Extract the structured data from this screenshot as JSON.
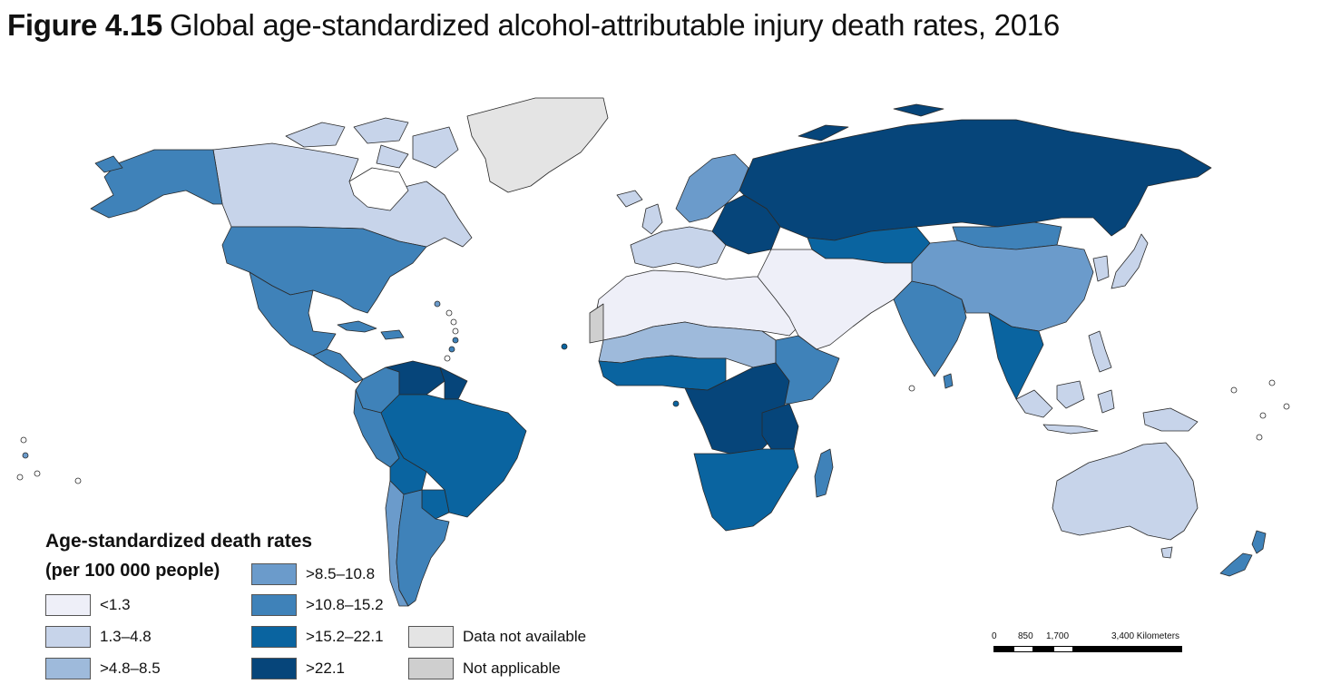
{
  "title": {
    "figure_number": "Figure 4.15",
    "text": "Global age-standardized alcohol-attributable injury death rates, 2016"
  },
  "legend": {
    "title_line1": "Age-standardized death rates",
    "title_line2": "(per 100 000 people)",
    "classes": [
      {
        "label": "<1.3",
        "color": "#eeeff8"
      },
      {
        "label": "1.3–4.8",
        "color": "#c7d4ea"
      },
      {
        "label": ">4.8–8.5",
        "color": "#9ebadb"
      },
      {
        "label": ">8.5–10.8",
        "color": "#6b9bcb"
      },
      {
        "label": ">10.8–15.2",
        "color": "#3f82b9"
      },
      {
        "label": ">15.2–22.1",
        "color": "#0a64a0"
      },
      {
        "label": ">22.1",
        "color": "#06457a"
      },
      {
        "label": "Data not available",
        "color": "#e4e4e4"
      },
      {
        "label": "Not applicable",
        "color": "#cfcfcf"
      }
    ]
  },
  "scale_bar": {
    "ticks": [
      "0",
      "850",
      "1,700",
      "3,400 Kilometers"
    ]
  },
  "regions": [
    {
      "name": "greenland",
      "class": "Data not available"
    },
    {
      "name": "canada",
      "class": "1.3–4.8"
    },
    {
      "name": "alaska",
      "class": ">10.8–15.2"
    },
    {
      "name": "usa",
      "class": ">10.8–15.2"
    },
    {
      "name": "mexico",
      "class": ">10.8–15.2"
    },
    {
      "name": "central-america",
      "class": ">10.8–15.2"
    },
    {
      "name": "colombia",
      "class": ">10.8–15.2"
    },
    {
      "name": "venezuela",
      "class": ">22.1"
    },
    {
      "name": "brazil",
      "class": ">15.2–22.1"
    },
    {
      "name": "peru",
      "class": ">10.8–15.2"
    },
    {
      "name": "bolivia",
      "class": ">15.2–22.1"
    },
    {
      "name": "paraguay",
      "class": ">15.2–22.1"
    },
    {
      "name": "argentina",
      "class": ">10.8–15.2"
    },
    {
      "name": "chile",
      "class": ">8.5–10.8"
    },
    {
      "name": "north-africa",
      "class": "<1.3"
    },
    {
      "name": "sahel",
      "class": ">4.8–8.5"
    },
    {
      "name": "west-africa",
      "class": ">15.2–22.1"
    },
    {
      "name": "central-africa",
      "class": ">22.1"
    },
    {
      "name": "east-africa",
      "class": ">10.8–15.2"
    },
    {
      "name": "southern-africa",
      "class": ">15.2–22.1"
    },
    {
      "name": "madagascar",
      "class": ">10.8–15.2"
    },
    {
      "name": "western-europe",
      "class": "1.3–4.8"
    },
    {
      "name": "scandinavia",
      "class": ">8.5–10.8"
    },
    {
      "name": "eastern-europe",
      "class": ">22.1"
    },
    {
      "name": "russia",
      "class": ">22.1"
    },
    {
      "name": "kazakhstan",
      "class": ">15.2–22.1"
    },
    {
      "name": "middle-east",
      "class": "<1.3"
    },
    {
      "name": "india",
      "class": ">10.8–15.2"
    },
    {
      "name": "china",
      "class": ">8.5–10.8"
    },
    {
      "name": "mongolia",
      "class": ">10.8–15.2"
    },
    {
      "name": "southeast-asia",
      "class": ">15.2–22.1"
    },
    {
      "name": "indonesia",
      "class": "1.3–4.8"
    },
    {
      "name": "japan",
      "class": "1.3–4.8"
    },
    {
      "name": "australia",
      "class": "1.3–4.8"
    },
    {
      "name": "new-zealand",
      "class": ">10.8–15.2"
    }
  ]
}
